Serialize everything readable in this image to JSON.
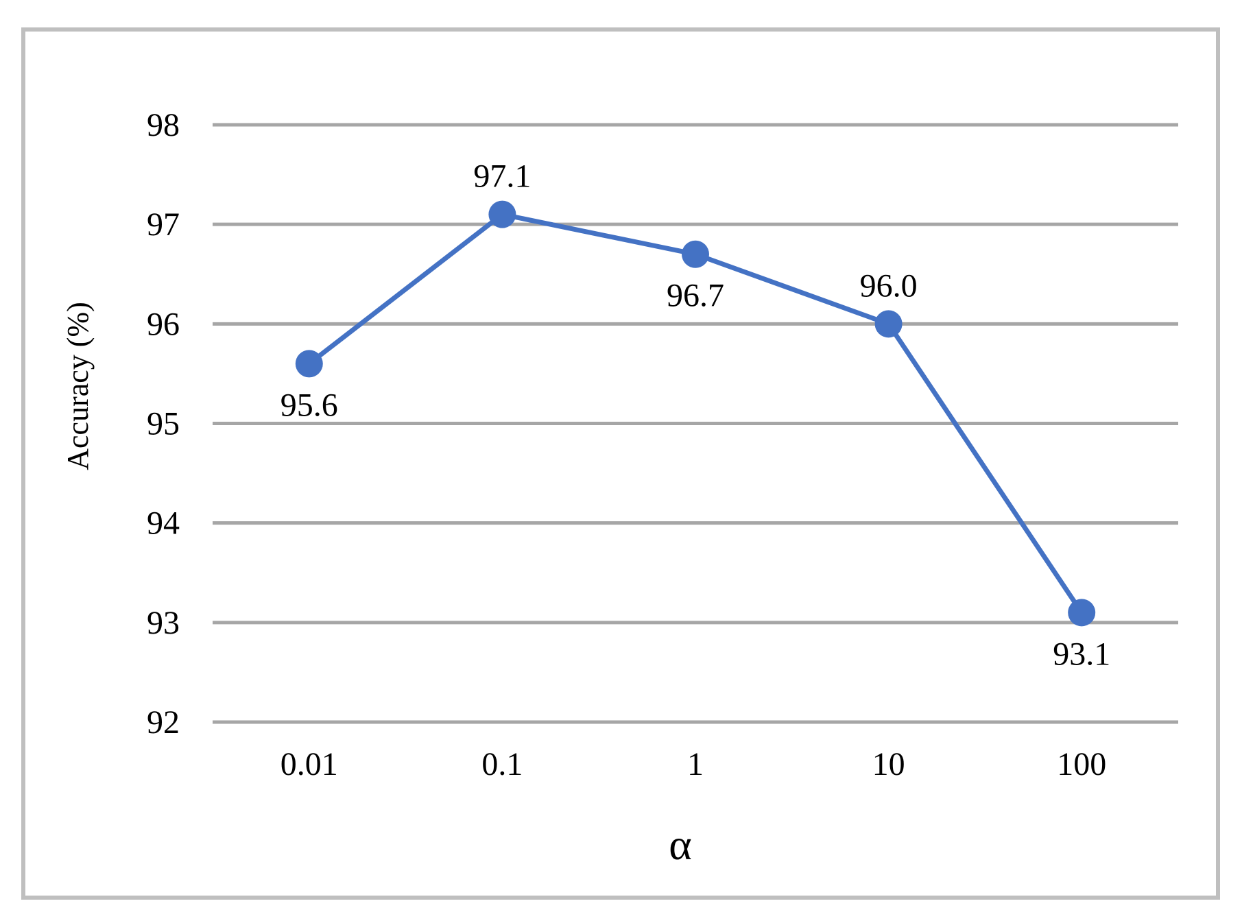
{
  "chart_data": {
    "type": "line",
    "categories": [
      "0.01",
      "0.1",
      "1",
      "10",
      "100"
    ],
    "series": [
      {
        "values": [
          95.6,
          97.1,
          96.7,
          96.0,
          93.1
        ],
        "data_labels": [
          "95.6",
          "97.1",
          "96.7",
          "96.0",
          "93.1"
        ],
        "label_positions": [
          "below",
          "above",
          "below",
          "above",
          "below"
        ]
      }
    ],
    "xlabel": "α",
    "ylabel": "Accuracy (%)",
    "ylim": [
      92,
      98
    ],
    "yticks": [
      92,
      93,
      94,
      95,
      96,
      97,
      98
    ],
    "ytick_labels": [
      "92",
      "93",
      "94",
      "95",
      "96",
      "97",
      "98"
    ],
    "grid": "horizontal",
    "legend": "none",
    "colors": {
      "series": "#4472c4",
      "grid": "#a6a6a6",
      "frame": "#bfbfbf"
    }
  }
}
